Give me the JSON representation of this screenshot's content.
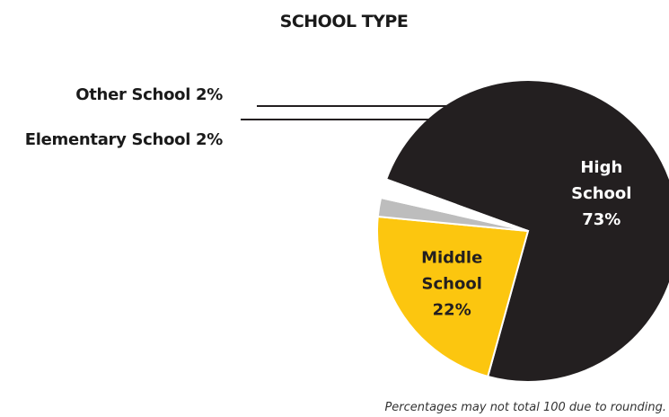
{
  "chart_data": {
    "type": "pie",
    "title": "SCHOOL TYPE",
    "note": "Percentages may not total 100 due to rounding.",
    "slices": [
      {
        "label": "High School",
        "label_lines": [
          "High",
          "School",
          "73%"
        ],
        "value": 73,
        "value_label": "73%",
        "color": "#231f20",
        "text_color": "#ffffff"
      },
      {
        "label": "Middle School",
        "label_lines": [
          "Middle",
          "School",
          "22%"
        ],
        "value": 22,
        "value_label": "22%",
        "color": "#fcc60f",
        "text_color": "#231f20"
      },
      {
        "label": "Elementary School",
        "callout": "Elementary School 2%",
        "value": 2,
        "value_label": "2%",
        "color": "#bdbdbd"
      },
      {
        "label": "Other School",
        "callout": "Other School 2%",
        "value": 2,
        "value_label": "2%",
        "color": "#ffffff"
      }
    ]
  }
}
